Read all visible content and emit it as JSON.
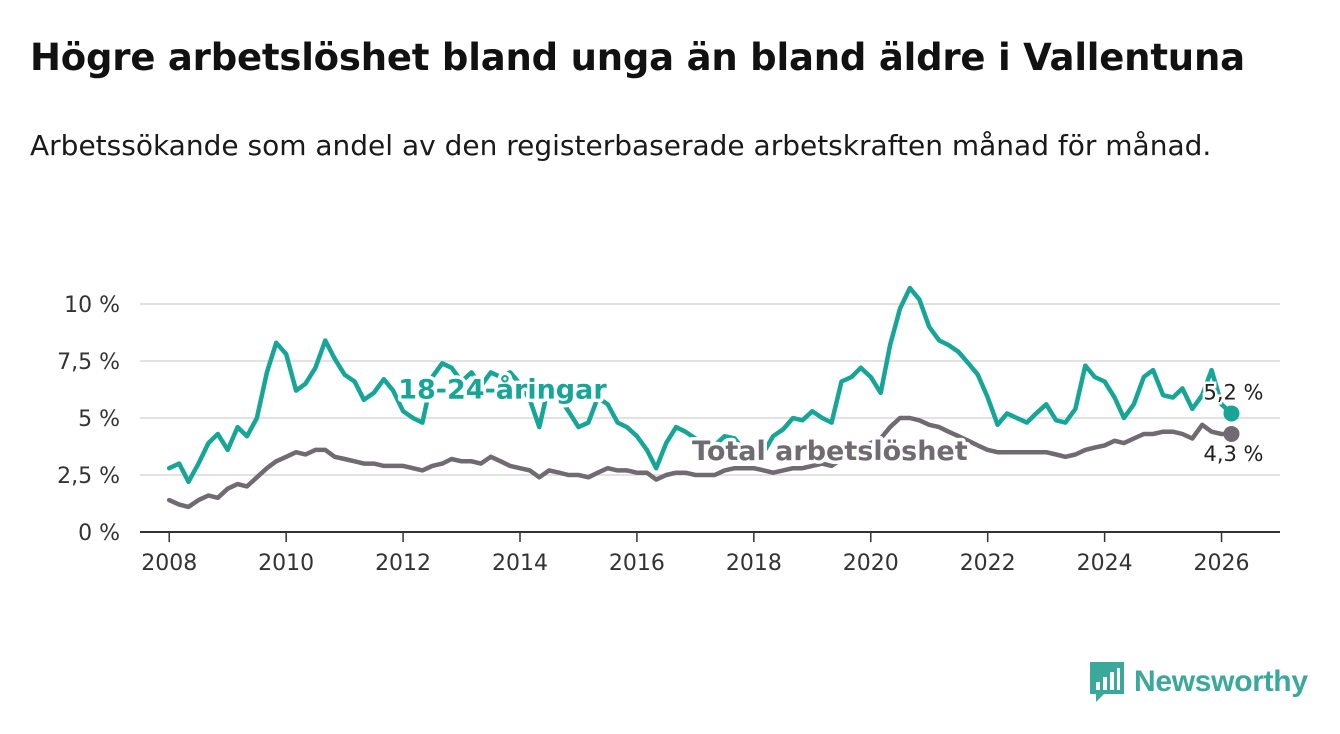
{
  "header": {
    "title": "Högre arbetslöshet bland unga än bland äldre i Vallentuna",
    "subtitle": "Arbetssökande som andel av den registerbaserade arbetskraften månad för månad."
  },
  "brand": {
    "name": "Newsworthy",
    "icon": "newsworthy-chart-icon",
    "color": "#3aa89b"
  },
  "chart_data": {
    "type": "line",
    "title": "Högre arbetslöshet bland unga än bland äldre i Vallentuna",
    "subtitle": "Arbetssökande som andel av den registerbaserade arbetskraften månad för månad.",
    "xlabel": "",
    "ylabel": "",
    "xlim": [
      2007.5,
      2027.0
    ],
    "ylim": [
      0,
      10
    ],
    "x_ticks": [
      2008,
      2010,
      2012,
      2014,
      2016,
      2018,
      2020,
      2022,
      2024,
      2026
    ],
    "x_tick_labels": [
      "2008",
      "2010",
      "2012",
      "2014",
      "2016",
      "2018",
      "2020",
      "2022",
      "2024",
      "2026"
    ],
    "y_ticks": [
      0,
      2.5,
      5,
      7.5,
      10
    ],
    "y_tick_labels": [
      "0 %",
      "2,5 %",
      "5 %",
      "7,5 %",
      "10 %"
    ],
    "grid": true,
    "series": [
      {
        "name": "18-24-åringar",
        "color": "#16a596",
        "end_label": "5,2 %",
        "points": [
          [
            2008.0,
            2.8
          ],
          [
            2008.17,
            3.0
          ],
          [
            2008.33,
            2.2
          ],
          [
            2008.5,
            3.0
          ],
          [
            2008.67,
            3.9
          ],
          [
            2008.83,
            4.3
          ],
          [
            2009.0,
            3.6
          ],
          [
            2009.17,
            4.6
          ],
          [
            2009.33,
            4.2
          ],
          [
            2009.5,
            5.0
          ],
          [
            2009.67,
            7.0
          ],
          [
            2009.83,
            8.3
          ],
          [
            2010.0,
            7.8
          ],
          [
            2010.17,
            6.2
          ],
          [
            2010.33,
            6.5
          ],
          [
            2010.5,
            7.2
          ],
          [
            2010.67,
            8.4
          ],
          [
            2010.83,
            7.6
          ],
          [
            2011.0,
            6.9
          ],
          [
            2011.17,
            6.6
          ],
          [
            2011.33,
            5.8
          ],
          [
            2011.5,
            6.1
          ],
          [
            2011.67,
            6.7
          ],
          [
            2011.83,
            6.2
          ],
          [
            2012.0,
            5.3
          ],
          [
            2012.17,
            5.0
          ],
          [
            2012.33,
            4.8
          ],
          [
            2012.5,
            6.8
          ],
          [
            2012.67,
            7.4
          ],
          [
            2012.83,
            7.2
          ],
          [
            2013.0,
            6.6
          ],
          [
            2013.17,
            7.0
          ],
          [
            2013.33,
            6.4
          ],
          [
            2013.5,
            7.0
          ],
          [
            2013.67,
            6.8
          ],
          [
            2013.83,
            7.0
          ],
          [
            2014.0,
            6.5
          ],
          [
            2014.17,
            5.8
          ],
          [
            2014.33,
            4.6
          ],
          [
            2014.5,
            6.5
          ],
          [
            2014.67,
            5.9
          ],
          [
            2014.83,
            5.3
          ],
          [
            2015.0,
            4.6
          ],
          [
            2015.17,
            4.8
          ],
          [
            2015.33,
            5.9
          ],
          [
            2015.5,
            5.6
          ],
          [
            2015.67,
            4.8
          ],
          [
            2015.83,
            4.6
          ],
          [
            2016.0,
            4.2
          ],
          [
            2016.17,
            3.6
          ],
          [
            2016.33,
            2.8
          ],
          [
            2016.5,
            3.9
          ],
          [
            2016.67,
            4.6
          ],
          [
            2016.83,
            4.4
          ],
          [
            2017.0,
            4.1
          ],
          [
            2017.17,
            3.9
          ],
          [
            2017.33,
            3.8
          ],
          [
            2017.5,
            4.2
          ],
          [
            2017.67,
            4.1
          ],
          [
            2017.83,
            3.6
          ],
          [
            2018.0,
            3.4
          ],
          [
            2018.17,
            3.5
          ],
          [
            2018.33,
            4.2
          ],
          [
            2018.5,
            4.5
          ],
          [
            2018.67,
            5.0
          ],
          [
            2018.83,
            4.9
          ],
          [
            2019.0,
            5.3
          ],
          [
            2019.17,
            5.0
          ],
          [
            2019.33,
            4.8
          ],
          [
            2019.5,
            6.6
          ],
          [
            2019.67,
            6.8
          ],
          [
            2019.83,
            7.2
          ],
          [
            2020.0,
            6.8
          ],
          [
            2020.17,
            6.1
          ],
          [
            2020.33,
            8.2
          ],
          [
            2020.5,
            9.8
          ],
          [
            2020.67,
            10.7
          ],
          [
            2020.83,
            10.2
          ],
          [
            2021.0,
            9.0
          ],
          [
            2021.17,
            8.4
          ],
          [
            2021.33,
            8.2
          ],
          [
            2021.5,
            7.9
          ],
          [
            2021.67,
            7.4
          ],
          [
            2021.83,
            6.9
          ],
          [
            2022.0,
            5.9
          ],
          [
            2022.17,
            4.7
          ],
          [
            2022.33,
            5.2
          ],
          [
            2022.5,
            5.0
          ],
          [
            2022.67,
            4.8
          ],
          [
            2022.83,
            5.2
          ],
          [
            2023.0,
            5.6
          ],
          [
            2023.17,
            4.9
          ],
          [
            2023.33,
            4.8
          ],
          [
            2023.5,
            5.4
          ],
          [
            2023.67,
            7.3
          ],
          [
            2023.83,
            6.8
          ],
          [
            2024.0,
            6.6
          ],
          [
            2024.17,
            5.9
          ],
          [
            2024.33,
            5.0
          ],
          [
            2024.5,
            5.6
          ],
          [
            2024.67,
            6.8
          ],
          [
            2024.83,
            7.1
          ],
          [
            2025.0,
            6.0
          ],
          [
            2025.17,
            5.9
          ],
          [
            2025.33,
            6.3
          ],
          [
            2025.5,
            5.4
          ],
          [
            2025.67,
            6.0
          ],
          [
            2025.83,
            7.1
          ],
          [
            2026.0,
            5.6
          ],
          [
            2026.17,
            5.2
          ]
        ]
      },
      {
        "name": "Total arbetslöshet",
        "color": "#6f6b70",
        "end_label": "4,3 %",
        "points": [
          [
            2008.0,
            1.4
          ],
          [
            2008.17,
            1.2
          ],
          [
            2008.33,
            1.1
          ],
          [
            2008.5,
            1.4
          ],
          [
            2008.67,
            1.6
          ],
          [
            2008.83,
            1.5
          ],
          [
            2009.0,
            1.9
          ],
          [
            2009.17,
            2.1
          ],
          [
            2009.33,
            2.0
          ],
          [
            2009.5,
            2.4
          ],
          [
            2009.67,
            2.8
          ],
          [
            2009.83,
            3.1
          ],
          [
            2010.0,
            3.3
          ],
          [
            2010.17,
            3.5
          ],
          [
            2010.33,
            3.4
          ],
          [
            2010.5,
            3.6
          ],
          [
            2010.67,
            3.6
          ],
          [
            2010.83,
            3.3
          ],
          [
            2011.0,
            3.2
          ],
          [
            2011.17,
            3.1
          ],
          [
            2011.33,
            3.0
          ],
          [
            2011.5,
            3.0
          ],
          [
            2011.67,
            2.9
          ],
          [
            2011.83,
            2.9
          ],
          [
            2012.0,
            2.9
          ],
          [
            2012.17,
            2.8
          ],
          [
            2012.33,
            2.7
          ],
          [
            2012.5,
            2.9
          ],
          [
            2012.67,
            3.0
          ],
          [
            2012.83,
            3.2
          ],
          [
            2013.0,
            3.1
          ],
          [
            2013.17,
            3.1
          ],
          [
            2013.33,
            3.0
          ],
          [
            2013.5,
            3.3
          ],
          [
            2013.67,
            3.1
          ],
          [
            2013.83,
            2.9
          ],
          [
            2014.0,
            2.8
          ],
          [
            2014.17,
            2.7
          ],
          [
            2014.33,
            2.4
          ],
          [
            2014.5,
            2.7
          ],
          [
            2014.67,
            2.6
          ],
          [
            2014.83,
            2.5
          ],
          [
            2015.0,
            2.5
          ],
          [
            2015.17,
            2.4
          ],
          [
            2015.33,
            2.6
          ],
          [
            2015.5,
            2.8
          ],
          [
            2015.67,
            2.7
          ],
          [
            2015.83,
            2.7
          ],
          [
            2016.0,
            2.6
          ],
          [
            2016.17,
            2.6
          ],
          [
            2016.33,
            2.3
          ],
          [
            2016.5,
            2.5
          ],
          [
            2016.67,
            2.6
          ],
          [
            2016.83,
            2.6
          ],
          [
            2017.0,
            2.5
          ],
          [
            2017.17,
            2.5
          ],
          [
            2017.33,
            2.5
          ],
          [
            2017.5,
            2.7
          ],
          [
            2017.67,
            2.8
          ],
          [
            2017.83,
            2.8
          ],
          [
            2018.0,
            2.8
          ],
          [
            2018.17,
            2.7
          ],
          [
            2018.33,
            2.6
          ],
          [
            2018.5,
            2.7
          ],
          [
            2018.67,
            2.8
          ],
          [
            2018.83,
            2.8
          ],
          [
            2019.0,
            2.9
          ],
          [
            2019.17,
            3.0
          ],
          [
            2019.33,
            2.9
          ],
          [
            2019.5,
            3.2
          ],
          [
            2019.67,
            3.5
          ],
          [
            2019.83,
            3.7
          ],
          [
            2020.0,
            3.9
          ],
          [
            2020.17,
            4.1
          ],
          [
            2020.33,
            4.6
          ],
          [
            2020.5,
            5.0
          ],
          [
            2020.67,
            5.0
          ],
          [
            2020.83,
            4.9
          ],
          [
            2021.0,
            4.7
          ],
          [
            2021.17,
            4.6
          ],
          [
            2021.33,
            4.4
          ],
          [
            2021.5,
            4.2
          ],
          [
            2021.67,
            4.0
          ],
          [
            2021.83,
            3.8
          ],
          [
            2022.0,
            3.6
          ],
          [
            2022.17,
            3.5
          ],
          [
            2022.33,
            3.5
          ],
          [
            2022.5,
            3.5
          ],
          [
            2022.67,
            3.5
          ],
          [
            2022.83,
            3.5
          ],
          [
            2023.0,
            3.5
          ],
          [
            2023.17,
            3.4
          ],
          [
            2023.33,
            3.3
          ],
          [
            2023.5,
            3.4
          ],
          [
            2023.67,
            3.6
          ],
          [
            2023.83,
            3.7
          ],
          [
            2024.0,
            3.8
          ],
          [
            2024.17,
            4.0
          ],
          [
            2024.33,
            3.9
          ],
          [
            2024.5,
            4.1
          ],
          [
            2024.67,
            4.3
          ],
          [
            2024.83,
            4.3
          ],
          [
            2025.0,
            4.4
          ],
          [
            2025.17,
            4.4
          ],
          [
            2025.33,
            4.3
          ],
          [
            2025.5,
            4.1
          ],
          [
            2025.67,
            4.7
          ],
          [
            2025.83,
            4.4
          ],
          [
            2026.0,
            4.3
          ],
          [
            2026.17,
            4.3
          ]
        ]
      }
    ],
    "annotations": [
      {
        "text": "18-24-åringar",
        "series": "18-24-åringar",
        "x": 2013.7,
        "y": 6.3
      },
      {
        "text": "Total arbetslöshet",
        "series": "Total arbetslöshet",
        "x": 2019.3,
        "y": 3.6
      }
    ]
  }
}
